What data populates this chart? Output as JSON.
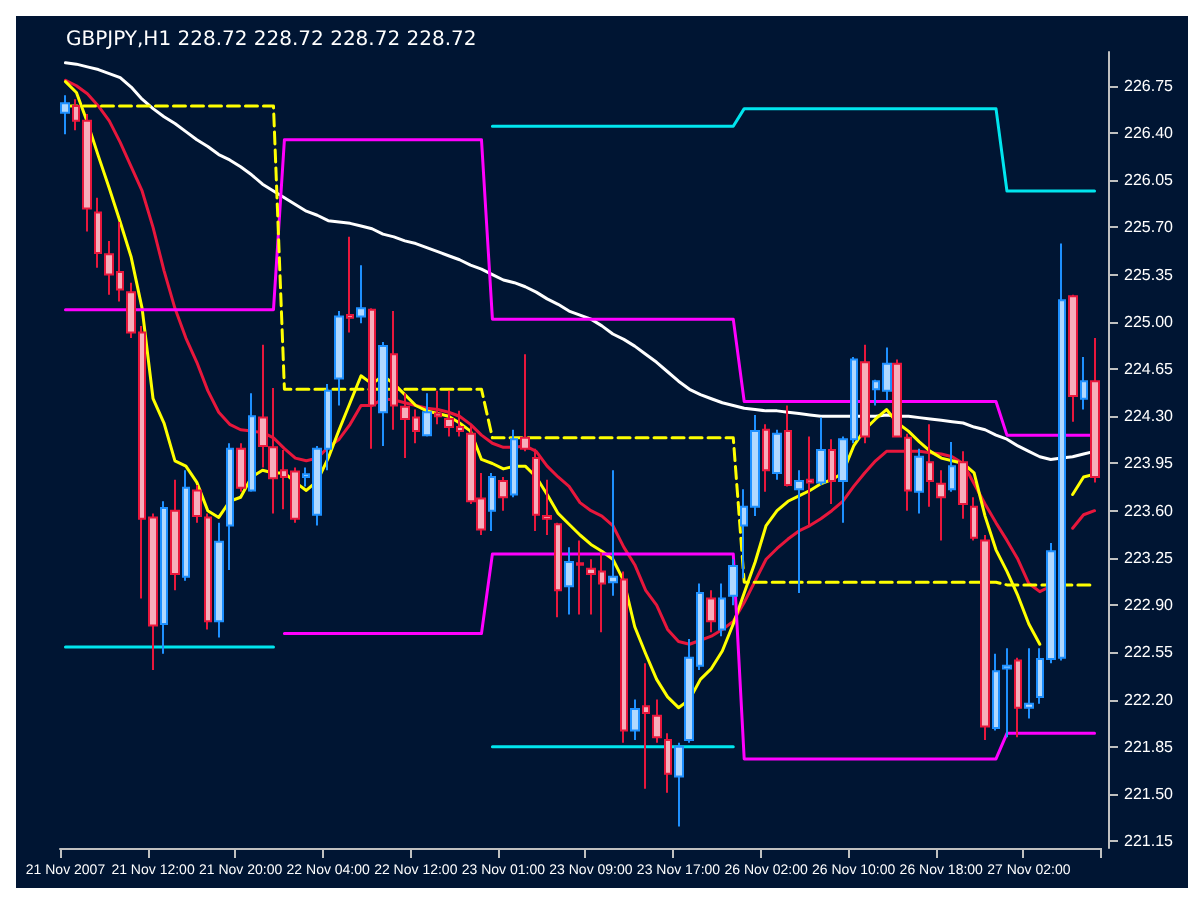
{
  "chart_data": {
    "type": "candlestick",
    "title": "GBPJPY,H1 228.72 228.72 228.72 228.72",
    "categories": [
      "21 Nov 2007",
      null,
      null,
      null,
      null,
      null,
      null,
      null,
      "21 Nov 12:00",
      null,
      null,
      null,
      null,
      null,
      null,
      null,
      "21 Nov 20:00",
      null,
      null,
      null,
      null,
      null,
      null,
      null,
      "22 Nov 04:00",
      null,
      null,
      null,
      null,
      null,
      null,
      null,
      "22 Nov 12:00",
      null,
      null,
      null,
      null,
      null,
      null,
      null,
      "23 Nov 01:00",
      null,
      null,
      null,
      null,
      null,
      null,
      null,
      "23 Nov 09:00",
      null,
      null,
      null,
      null,
      null,
      null,
      null,
      "23 Nov 17:00",
      null,
      null,
      null,
      null,
      null,
      null,
      null,
      "26 Nov 02:00",
      null,
      null,
      null,
      null,
      null,
      null,
      null,
      "26 Nov 10:00",
      null,
      null,
      null,
      null,
      null,
      null,
      null,
      "26 Nov 18:00",
      null,
      null,
      null,
      null,
      null,
      null,
      null,
      "27 Nov 02:00",
      null,
      null,
      null,
      null,
      null,
      null
    ],
    "ylim": [
      221.1,
      227.0
    ],
    "yticks": [
      221.15,
      {
        "value": 221.5,
        "label": "221.50"
      },
      221.85,
      {
        "value": 222.2,
        "label": "222.20"
      },
      222.55,
      {
        "value": 222.9,
        "label": "222.90"
      },
      223.25,
      {
        "value": 223.6,
        "label": "223.60"
      },
      223.95,
      {
        "value": 224.3,
        "label": "224.30"
      },
      224.65,
      {
        "value": 225.0,
        "label": "225.00"
      },
      225.35,
      {
        "value": 225.7,
        "label": "225.70"
      },
      226.05,
      {
        "value": 226.4,
        "label": "226.40"
      },
      226.75
    ],
    "series": [
      {
        "type": "line",
        "color": "#ffffff",
        "values": [
          226.92,
          226.91,
          226.89,
          226.87,
          226.84,
          226.81,
          226.74,
          226.65,
          226.58,
          226.52,
          226.47,
          226.41,
          226.35,
          226.3,
          226.24,
          226.2,
          226.15,
          226.09,
          226.02,
          225.97,
          225.92,
          225.87,
          225.82,
          225.79,
          225.75,
          225.74,
          225.73,
          225.71,
          225.69,
          225.65,
          225.63,
          225.6,
          225.58,
          225.55,
          225.52,
          225.49,
          225.46,
          225.42,
          225.39,
          225.35,
          225.31,
          225.29,
          225.26,
          225.22,
          225.17,
          225.13,
          225.08,
          225.05,
          225.02,
          224.97,
          224.91,
          224.87,
          224.82,
          224.76,
          224.7,
          224.63,
          224.56,
          224.5,
          224.46,
          224.43,
          224.4,
          224.38,
          224.36,
          224.35,
          224.34,
          224.34,
          224.33,
          224.32,
          224.31,
          224.3,
          224.3,
          224.3,
          224.3,
          224.3,
          224.3,
          224.31,
          224.3,
          224.3,
          224.29,
          224.28,
          224.27,
          224.26,
          224.25,
          224.22,
          224.2,
          224.16,
          224.13,
          224.08,
          224.04,
          224.0,
          223.98,
          223.99,
          224.0,
          224.02,
          224.04
        ]
      },
      {
        "type": "line",
        "color": "#e8173c",
        "values": [
          226.79,
          226.75,
          226.69,
          226.6,
          226.49,
          226.33,
          226.15,
          225.97,
          225.7,
          225.38,
          225.1,
          224.88,
          224.7,
          224.49,
          224.33,
          224.24,
          224.2,
          224.19,
          224.18,
          224.14,
          224.06,
          223.99,
          223.97,
          223.99,
          224.07,
          224.13,
          224.24,
          224.38,
          224.38,
          224.43,
          224.42,
          224.4,
          224.38,
          224.36,
          224.35,
          224.33,
          224.3,
          224.24,
          224.16,
          224.1,
          224.07,
          224.07,
          224.08,
          224.04,
          223.93,
          223.85,
          223.78,
          223.66,
          223.6,
          223.56,
          223.49,
          223.33,
          223.2,
          223.01,
          222.9,
          222.72,
          222.63,
          222.61,
          222.64,
          222.67,
          222.72,
          222.78,
          222.92,
          223.08,
          223.24,
          223.32,
          223.39,
          223.45,
          223.49,
          223.54,
          223.6,
          223.67,
          223.78,
          223.88,
          223.97,
          224.04,
          224.04,
          224.04,
          224.04,
          224.03,
          224.02,
          224.0,
          223.95,
          223.8,
          223.65,
          223.51,
          223.38,
          223.24,
          223.06,
          223.0,
          223.04,
          null,
          223.47,
          223.57,
          223.6
        ]
      },
      {
        "type": "line",
        "color": "#ffff00",
        "values": [
          226.78,
          226.7,
          226.48,
          226.23,
          225.99,
          225.74,
          225.48,
          225.1,
          224.43,
          224.25,
          223.97,
          223.93,
          223.81,
          223.6,
          223.55,
          223.67,
          223.7,
          223.85,
          223.9,
          223.88,
          223.88,
          223.81,
          223.75,
          223.82,
          223.99,
          224.2,
          224.4,
          224.6,
          224.54,
          224.6,
          224.54,
          224.46,
          224.38,
          224.34,
          224.32,
          224.3,
          224.25,
          224.19,
          223.98,
          223.95,
          223.91,
          223.93,
          223.93,
          223.85,
          223.72,
          223.58,
          223.5,
          223.42,
          223.35,
          223.3,
          223.24,
          223.08,
          222.74,
          222.54,
          222.35,
          222.22,
          222.14,
          222.2,
          222.35,
          222.43,
          222.56,
          222.76,
          222.99,
          223.22,
          223.49,
          223.6,
          223.67,
          223.71,
          223.75,
          223.8,
          223.83,
          223.88,
          224.08,
          224.2,
          224.28,
          224.35,
          224.25,
          224.19,
          224.11,
          224.04,
          223.99,
          223.97,
          223.95,
          223.88,
          223.56,
          223.31,
          223.15,
          222.97,
          222.76,
          222.61,
          null,
          null,
          223.72,
          223.85,
          223.87
        ]
      },
      {
        "type": "line",
        "color": "#ff00ff",
        "values": [
          225.09,
          225.09,
          225.09,
          225.09,
          225.09,
          225.09,
          225.09,
          225.09,
          225.09,
          225.09,
          225.09,
          225.09,
          225.09,
          225.09,
          225.09,
          225.09,
          225.09,
          225.09,
          225.09,
          225.09,
          226.35,
          226.35,
          226.35,
          226.35,
          226.35,
          226.35,
          226.35,
          226.35,
          226.35,
          226.35,
          226.35,
          226.35,
          226.35,
          226.35,
          226.35,
          226.35,
          226.35,
          226.35,
          226.35,
          225.02,
          225.02,
          225.02,
          225.02,
          225.02,
          225.02,
          225.02,
          225.02,
          225.02,
          225.02,
          225.02,
          225.02,
          225.02,
          225.02,
          225.02,
          225.02,
          225.02,
          225.02,
          225.02,
          225.02,
          225.02,
          225.02,
          225.02,
          224.41,
          224.41,
          224.41,
          224.41,
          224.41,
          224.41,
          224.41,
          224.41,
          224.41,
          224.41,
          224.41,
          224.41,
          224.41,
          224.41,
          224.41,
          224.41,
          224.41,
          224.41,
          224.41,
          224.41,
          224.41,
          224.41,
          224.41,
          224.41,
          224.16,
          224.16,
          224.16,
          224.16,
          224.16,
          224.16,
          224.16,
          224.16,
          224.16
        ]
      },
      {
        "type": "line",
        "color": "#ff00ff",
        "values": [
          null,
          null,
          null,
          null,
          null,
          null,
          null,
          null,
          null,
          null,
          null,
          null,
          null,
          null,
          null,
          null,
          null,
          null,
          null,
          null,
          222.69,
          222.69,
          222.69,
          222.69,
          222.69,
          222.69,
          222.69,
          222.69,
          222.69,
          222.69,
          222.69,
          222.69,
          222.69,
          222.69,
          222.69,
          222.69,
          222.69,
          222.69,
          222.69,
          223.28,
          223.28,
          223.28,
          223.28,
          223.28,
          223.28,
          223.28,
          223.28,
          223.28,
          223.28,
          223.28,
          223.28,
          223.28,
          223.28,
          223.28,
          223.28,
          223.28,
          223.28,
          223.28,
          223.28,
          223.28,
          223.28,
          223.28,
          221.76,
          221.76,
          221.76,
          221.76,
          221.76,
          221.76,
          221.76,
          221.76,
          221.76,
          221.76,
          221.76,
          221.76,
          221.76,
          221.76,
          221.76,
          221.76,
          221.76,
          221.76,
          221.76,
          221.76,
          221.76,
          221.76,
          221.76,
          221.76,
          221.95,
          221.95,
          221.95,
          221.95,
          221.95,
          221.95,
          221.95,
          221.95,
          221.95
        ]
      },
      {
        "type": "line",
        "color": "#00e5ee",
        "values": [
          null,
          null,
          null,
          null,
          null,
          null,
          null,
          null,
          null,
          null,
          null,
          null,
          null,
          null,
          null,
          null,
          null,
          null,
          null,
          null,
          null,
          null,
          null,
          null,
          null,
          null,
          null,
          null,
          null,
          null,
          null,
          null,
          null,
          null,
          null,
          null,
          null,
          null,
          null,
          226.45,
          226.45,
          226.45,
          226.45,
          226.45,
          226.45,
          226.45,
          226.45,
          226.45,
          226.45,
          226.45,
          226.45,
          226.45,
          226.45,
          226.45,
          226.45,
          226.45,
          226.45,
          226.45,
          226.45,
          226.45,
          226.45,
          226.45,
          226.58,
          226.58,
          226.58,
          226.58,
          226.58,
          226.58,
          226.58,
          226.58,
          226.58,
          226.58,
          226.58,
          226.58,
          226.58,
          226.58,
          226.58,
          226.58,
          226.58,
          226.58,
          226.58,
          226.58,
          226.58,
          226.58,
          226.58,
          226.58,
          225.97,
          225.97,
          225.97,
          225.97,
          225.97,
          225.97,
          225.97,
          225.97,
          225.97
        ]
      },
      {
        "type": "line",
        "color": "#00e5ee",
        "values": [
          222.59,
          222.59,
          222.59,
          222.59,
          222.59,
          222.59,
          222.59,
          222.59,
          222.59,
          222.59,
          222.59,
          222.59,
          222.59,
          222.59,
          222.59,
          222.59,
          222.59,
          222.59,
          222.59,
          222.59,
          null,
          null,
          null,
          null,
          null,
          null,
          null,
          null,
          null,
          null,
          null,
          null,
          null,
          null,
          null,
          null,
          null,
          null,
          null,
          221.85,
          221.85,
          221.85,
          221.85,
          221.85,
          221.85,
          221.85,
          221.85,
          221.85,
          221.85,
          221.85,
          221.85,
          221.85,
          221.85,
          221.85,
          221.85,
          221.85,
          221.85,
          221.85,
          221.85,
          221.85,
          221.85,
          221.85,
          null,
          null,
          null,
          null,
          null,
          null,
          null,
          null,
          null,
          null,
          null,
          null,
          null,
          null,
          null,
          null,
          null,
          null,
          null,
          null,
          null,
          null,
          null,
          null,
          null,
          null,
          null,
          null,
          null,
          null,
          null,
          null,
          null
        ]
      },
      {
        "type": "line",
        "color": "#ffff00",
        "line_style": "dashed",
        "values": [
          226.6,
          226.6,
          226.6,
          226.6,
          226.6,
          226.6,
          226.6,
          226.6,
          226.6,
          226.6,
          226.6,
          226.6,
          226.6,
          226.6,
          226.6,
          226.6,
          226.6,
          226.6,
          226.6,
          226.6,
          224.5,
          224.5,
          224.5,
          224.5,
          224.5,
          224.5,
          224.5,
          224.5,
          224.5,
          224.5,
          224.5,
          224.5,
          224.5,
          224.5,
          224.5,
          224.5,
          224.5,
          224.5,
          224.5,
          224.14,
          224.14,
          224.14,
          224.14,
          224.14,
          224.14,
          224.14,
          224.14,
          224.14,
          224.14,
          224.14,
          224.14,
          224.14,
          224.14,
          224.14,
          224.14,
          224.14,
          224.14,
          224.14,
          224.14,
          224.14,
          224.14,
          224.14,
          223.07,
          223.07,
          223.07,
          223.07,
          223.07,
          223.07,
          223.07,
          223.07,
          223.07,
          223.07,
          223.07,
          223.07,
          223.07,
          223.07,
          223.07,
          223.07,
          223.07,
          223.07,
          223.07,
          223.07,
          223.07,
          223.07,
          223.07,
          223.07,
          223.05,
          223.05,
          223.05,
          223.05,
          223.05,
          223.05,
          223.05,
          223.05,
          223.05
        ]
      },
      {
        "colors": [
          "#1e90ff",
          "#e8173c",
          "#e8173c",
          "#e8173c",
          "#e8173c",
          "#e8173c",
          "#e8173c",
          "#e8173c",
          "#e8173c",
          "#1e90ff",
          "#e8173c",
          "#1e90ff",
          "#e8173c",
          "#e8173c",
          "#1e90ff",
          "#1e90ff",
          "#e8173c",
          "#1e90ff",
          "#e8173c",
          "#e8173c",
          "#e8173c",
          "#e8173c",
          "#1e90ff",
          "#1e90ff",
          "#1e90ff",
          "#1e90ff",
          "#e8173c",
          "#1e90ff",
          "#e8173c",
          "#1e90ff",
          "#e8173c",
          "#e8173c",
          "#e8173c",
          "#1e90ff",
          "#e8173c",
          "#e8173c",
          "#e8173c",
          "#e8173c",
          "#e8173c",
          "#1e90ff",
          "#e8173c",
          "#1e90ff",
          "#e8173c",
          "#e8173c",
          "#e8173c",
          "#e8173c",
          "#1e90ff",
          "#e8173c",
          "#e8173c",
          "#e8173c",
          "#1e90ff",
          "#e8173c",
          "#1e90ff",
          "#e8173c",
          "#e8173c",
          "#e8173c",
          "#1e90ff",
          "#1e90ff",
          "#1e90ff",
          "#e8173c",
          "#1e90ff",
          "#1e90ff",
          "#1e90ff",
          "#1e90ff",
          "#e8173c",
          "#1e90ff",
          "#e8173c",
          "#1e90ff",
          "#e8173c",
          "#1e90ff",
          "#e8173c",
          "#1e90ff",
          "#1e90ff",
          "#e8173c",
          "#1e90ff",
          "#1e90ff",
          "#e8173c",
          "#e8173c",
          "#1e90ff",
          "#e8173c",
          "#e8173c",
          "#1e90ff",
          "#e8173c",
          "#e8173c",
          "#e8173c",
          "#1e90ff",
          "#1e90ff",
          "#e8173c",
          "#1e90ff",
          "#1e90ff",
          "#1e90ff",
          "#1e90ff",
          "#e8173c",
          "#1e90ff",
          "#e8173c"
        ],
        "ohlc": [
          [
            226.55,
            226.68,
            226.39,
            226.62
          ],
          [
            226.6,
            226.65,
            226.42,
            226.49
          ],
          [
            226.49,
            226.54,
            225.67,
            225.84
          ],
          [
            225.81,
            225.92,
            225.4,
            225.51
          ],
          [
            225.5,
            225.6,
            225.2,
            225.35
          ],
          [
            225.37,
            225.74,
            225.15,
            225.24
          ],
          [
            225.22,
            225.29,
            224.88,
            224.92
          ],
          [
            224.92,
            224.97,
            222.95,
            223.54
          ],
          [
            223.55,
            223.58,
            222.42,
            222.75
          ],
          [
            222.76,
            223.67,
            222.54,
            223.62
          ],
          [
            223.6,
            223.83,
            223.01,
            223.13
          ],
          [
            223.11,
            223.9,
            223.08,
            223.77
          ],
          [
            223.75,
            223.79,
            223.51,
            223.56
          ],
          [
            223.55,
            223.58,
            222.72,
            222.78
          ],
          [
            222.78,
            223.51,
            222.66,
            223.37
          ],
          [
            223.49,
            224.1,
            223.16,
            224.06
          ],
          [
            224.06,
            224.1,
            223.74,
            223.77
          ],
          [
            223.75,
            224.47,
            223.74,
            224.3
          ],
          [
            224.29,
            224.83,
            223.92,
            224.08
          ],
          [
            224.07,
            224.51,
            223.58,
            223.84
          ],
          [
            223.9,
            224.05,
            223.61,
            223.85
          ],
          [
            223.89,
            223.92,
            223.51,
            223.54
          ],
          [
            223.85,
            223.92,
            223.78,
            223.87
          ],
          [
            223.57,
            224.08,
            223.49,
            224.06
          ],
          [
            224.06,
            224.54,
            223.9,
            224.49
          ],
          [
            224.58,
            225.08,
            224.38,
            225.04
          ],
          [
            225.05,
            225.63,
            224.92,
            225.03
          ],
          [
            225.04,
            225.42,
            224.99,
            225.1
          ],
          [
            225.09,
            225.1,
            224.06,
            224.38
          ],
          [
            224.33,
            224.85,
            224.08,
            224.82
          ],
          [
            224.76,
            225.08,
            224.2,
            224.38
          ],
          [
            224.37,
            224.47,
            223.99,
            224.28
          ],
          [
            224.29,
            224.35,
            224.1,
            224.19
          ],
          [
            224.16,
            224.47,
            224.15,
            224.33
          ],
          [
            224.32,
            224.49,
            224.24,
            224.3
          ],
          [
            224.28,
            224.49,
            224.15,
            224.22
          ],
          [
            224.22,
            224.34,
            224.15,
            224.19
          ],
          [
            224.17,
            224.24,
            223.65,
            223.67
          ],
          [
            223.69,
            223.88,
            223.42,
            223.46
          ],
          [
            223.6,
            223.88,
            223.45,
            223.85
          ],
          [
            223.82,
            223.85,
            223.6,
            223.7
          ],
          [
            223.72,
            224.2,
            223.7,
            224.13
          ],
          [
            224.14,
            224.76,
            224.04,
            224.06
          ],
          [
            223.99,
            224.06,
            223.45,
            223.57
          ],
          [
            223.56,
            223.83,
            223.42,
            223.54
          ],
          [
            223.5,
            223.51,
            222.81,
            223.01
          ],
          [
            223.04,
            223.33,
            222.83,
            223.22
          ],
          [
            223.21,
            223.38,
            222.83,
            223.2
          ],
          [
            223.17,
            223.24,
            222.83,
            223.13
          ],
          [
            223.15,
            223.29,
            222.7,
            223.06
          ],
          [
            223.07,
            223.9,
            222.97,
            223.11
          ],
          [
            223.09,
            223.15,
            221.88,
            221.97
          ],
          [
            221.97,
            222.2,
            221.9,
            222.13
          ],
          [
            222.15,
            222.47,
            221.54,
            222.1
          ],
          [
            222.08,
            222.2,
            221.88,
            221.92
          ],
          [
            221.9,
            221.95,
            221.51,
            221.65
          ],
          [
            221.63,
            221.88,
            221.26,
            221.85
          ],
          [
            221.9,
            222.65,
            221.88,
            222.51
          ],
          [
            222.45,
            223.06,
            222.42,
            222.99
          ],
          [
            222.95,
            223.01,
            222.7,
            222.78
          ],
          [
            222.72,
            223.06,
            222.67,
            222.95
          ],
          [
            222.97,
            223.24,
            222.9,
            223.19
          ],
          [
            223.49,
            223.76,
            223.1,
            223.63
          ],
          [
            223.63,
            224.31,
            223.56,
            224.19
          ],
          [
            224.2,
            224.24,
            223.74,
            223.9
          ],
          [
            223.88,
            224.2,
            223.83,
            224.17
          ],
          [
            224.19,
            224.38,
            223.78,
            223.79
          ],
          [
            223.76,
            223.9,
            222.99,
            223.82
          ],
          [
            223.83,
            224.15,
            223.49,
            223.81
          ],
          [
            223.81,
            224.29,
            223.79,
            224.05
          ],
          [
            224.05,
            224.13,
            223.65,
            223.82
          ],
          [
            223.82,
            224.15,
            223.51,
            224.13
          ],
          [
            224.13,
            224.74,
            224.1,
            224.72
          ],
          [
            224.7,
            224.83,
            224.1,
            224.15
          ],
          [
            224.5,
            224.57,
            224.38,
            224.56
          ],
          [
            224.49,
            224.81,
            224.42,
            224.69
          ],
          [
            224.69,
            224.72,
            224.15,
            224.15
          ],
          [
            224.14,
            224.17,
            223.6,
            223.75
          ],
          [
            223.74,
            224.06,
            223.58,
            224.0
          ],
          [
            223.96,
            224.24,
            223.63,
            223.82
          ],
          [
            223.8,
            223.9,
            223.38,
            223.7
          ],
          [
            223.76,
            224.11,
            223.74,
            223.93
          ],
          [
            223.96,
            224.04,
            223.54,
            223.65
          ],
          [
            223.63,
            223.7,
            223.38,
            223.4
          ],
          [
            223.38,
            223.42,
            221.9,
            222.0
          ],
          [
            221.99,
            222.54,
            221.97,
            222.41
          ],
          [
            222.43,
            222.58,
            221.92,
            222.45
          ],
          [
            222.49,
            222.51,
            221.92,
            222.14
          ],
          [
            222.14,
            222.58,
            222.06,
            222.17
          ],
          [
            222.22,
            222.58,
            222.17,
            222.5
          ],
          [
            222.5,
            223.36,
            222.47,
            223.3
          ],
          [
            222.51,
            225.58,
            222.49,
            225.16
          ],
          [
            225.19,
            225.2,
            224.26,
            224.45
          ],
          [
            224.43,
            224.74,
            224.35,
            224.56
          ],
          [
            224.56,
            224.88,
            223.81,
            223.85
          ]
        ]
      }
    ]
  }
}
